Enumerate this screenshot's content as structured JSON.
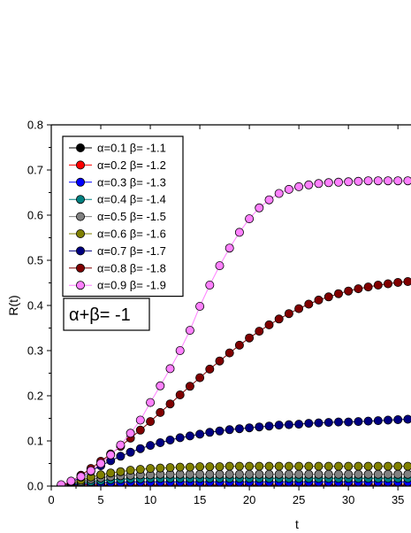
{
  "chart_data": {
    "type": "scatter",
    "xlabel": "t",
    "ylabel": "R(t)",
    "xlim": [
      0,
      36.5
    ],
    "ylim": [
      0,
      0.8
    ],
    "x_ticks": [
      0,
      5,
      10,
      15,
      20,
      25,
      30,
      35
    ],
    "y_ticks": [
      0.0,
      0.1,
      0.2,
      0.3,
      0.4,
      0.5,
      0.6,
      0.7,
      0.8
    ],
    "legend_position": "top-left",
    "annotation": "α+β= -1",
    "x": [
      1,
      2,
      3,
      4,
      5,
      6,
      7,
      8,
      9,
      10,
      11,
      12,
      13,
      14,
      15,
      16,
      17,
      18,
      19,
      20,
      21,
      22,
      23,
      24,
      25,
      26,
      27,
      28,
      29,
      30,
      31,
      32,
      33,
      34,
      35,
      36
    ],
    "series": [
      {
        "name": "α=0.1 β= -1.1",
        "color": "#000000",
        "values": [
          0,
          0,
          0,
          0,
          0.001,
          0.001,
          0.001,
          0.001,
          0.001,
          0.001,
          0.001,
          0.001,
          0.001,
          0.001,
          0.001,
          0.001,
          0.001,
          0.001,
          0.001,
          0.001,
          0.001,
          0.001,
          0.001,
          0.001,
          0.001,
          0.001,
          0.001,
          0.001,
          0.001,
          0.001,
          0.001,
          0.001,
          0.001,
          0.001,
          0.001,
          0.001
        ]
      },
      {
        "name": "α=0.2 β= -1.2",
        "color": "#ff0000",
        "values": [
          0,
          0.001,
          0.002,
          0.003,
          0.003,
          0.004,
          0.004,
          0.004,
          0.004,
          0.004,
          0.004,
          0.004,
          0.004,
          0.004,
          0.004,
          0.004,
          0.004,
          0.004,
          0.004,
          0.004,
          0.004,
          0.004,
          0.004,
          0.004,
          0.004,
          0.004,
          0.004,
          0.004,
          0.004,
          0.004,
          0.004,
          0.004,
          0.004,
          0.004,
          0.004,
          0.004
        ]
      },
      {
        "name": "α=0.3 β= -1.3",
        "color": "#0000ff",
        "values": [
          0,
          0.002,
          0.004,
          0.006,
          0.007,
          0.008,
          0.008,
          0.009,
          0.009,
          0.009,
          0.009,
          0.009,
          0.009,
          0.009,
          0.009,
          0.009,
          0.009,
          0.009,
          0.009,
          0.009,
          0.009,
          0.009,
          0.009,
          0.009,
          0.009,
          0.009,
          0.009,
          0.009,
          0.009,
          0.009,
          0.009,
          0.009,
          0.009,
          0.009,
          0.009,
          0.009
        ]
      },
      {
        "name": "α=0.4 β= -1.4",
        "color": "#008080",
        "values": [
          0,
          0.003,
          0.007,
          0.01,
          0.012,
          0.014,
          0.015,
          0.016,
          0.016,
          0.017,
          0.017,
          0.017,
          0.017,
          0.017,
          0.017,
          0.017,
          0.017,
          0.017,
          0.017,
          0.017,
          0.017,
          0.017,
          0.017,
          0.017,
          0.017,
          0.017,
          0.017,
          0.017,
          0.017,
          0.017,
          0.017,
          0.017,
          0.017,
          0.017,
          0.017,
          0.017
        ]
      },
      {
        "name": "α=0.5 β= -1.5",
        "color": "#808080",
        "values": [
          0,
          0.004,
          0.01,
          0.015,
          0.018,
          0.021,
          0.023,
          0.024,
          0.025,
          0.025,
          0.026,
          0.026,
          0.026,
          0.026,
          0.026,
          0.026,
          0.026,
          0.026,
          0.026,
          0.026,
          0.026,
          0.026,
          0.026,
          0.026,
          0.026,
          0.026,
          0.026,
          0.026,
          0.026,
          0.026,
          0.026,
          0.026,
          0.026,
          0.026,
          0.026,
          0.026
        ]
      },
      {
        "name": "α=0.6 β= -1.6",
        "color": "#808000",
        "values": [
          0,
          0.006,
          0.013,
          0.02,
          0.025,
          0.029,
          0.032,
          0.035,
          0.037,
          0.039,
          0.04,
          0.041,
          0.042,
          0.042,
          0.043,
          0.043,
          0.043,
          0.044,
          0.044,
          0.044,
          0.044,
          0.044,
          0.044,
          0.044,
          0.044,
          0.044,
          0.044,
          0.044,
          0.044,
          0.044,
          0.044,
          0.044,
          0.044,
          0.044,
          0.044,
          0.044
        ]
      },
      {
        "name": "α=0.7 β= -1.7",
        "color": "#000080",
        "values": [
          0,
          0.008,
          0.02,
          0.033,
          0.045,
          0.056,
          0.066,
          0.075,
          0.083,
          0.09,
          0.096,
          0.102,
          0.107,
          0.111,
          0.115,
          0.119,
          0.122,
          0.125,
          0.127,
          0.129,
          0.131,
          0.133,
          0.135,
          0.136,
          0.137,
          0.139,
          0.14,
          0.141,
          0.142,
          0.142,
          0.143,
          0.144,
          0.145,
          0.146,
          0.147,
          0.148
        ]
      },
      {
        "name": "α=0.8 β= -1.8",
        "color": "#800000",
        "values": [
          0,
          0.01,
          0.024,
          0.039,
          0.055,
          0.071,
          0.088,
          0.106,
          0.124,
          0.143,
          0.163,
          0.182,
          0.202,
          0.221,
          0.24,
          0.259,
          0.277,
          0.295,
          0.312,
          0.328,
          0.343,
          0.357,
          0.37,
          0.382,
          0.393,
          0.403,
          0.412,
          0.419,
          0.426,
          0.432,
          0.437,
          0.441,
          0.445,
          0.448,
          0.451,
          0.453
        ]
      },
      {
        "name": "α=0.9 β= -1.9",
        "color": "#ff80ff",
        "values": [
          0.003,
          0.011,
          0.021,
          0.034,
          0.05,
          0.069,
          0.091,
          0.117,
          0.146,
          0.185,
          0.222,
          0.26,
          0.3,
          0.345,
          0.398,
          0.445,
          0.488,
          0.527,
          0.562,
          0.592,
          0.616,
          0.634,
          0.648,
          0.657,
          0.663,
          0.667,
          0.67,
          0.672,
          0.673,
          0.674,
          0.675,
          0.676,
          0.676,
          0.676,
          0.676,
          0.676
        ]
      }
    ]
  }
}
